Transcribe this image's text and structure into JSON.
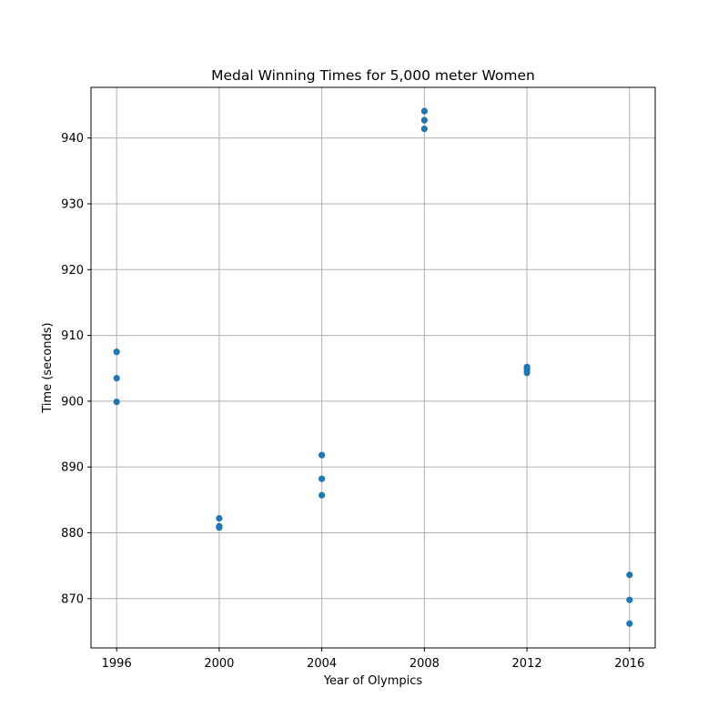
{
  "chart_data": {
    "type": "scatter",
    "title": "Medal Winning Times for 5,000 meter Women",
    "xlabel": "Year of Olympics",
    "ylabel": "Time (seconds)",
    "xlim": [
      1995,
      2017
    ],
    "ylim": [
      862.5,
      947.7
    ],
    "xticks": [
      1996,
      2000,
      2004,
      2008,
      2012,
      2016
    ],
    "yticks": [
      870,
      880,
      890,
      900,
      910,
      920,
      930,
      940
    ],
    "grid": true,
    "marker_color": "#1f77b4",
    "points": [
      {
        "x": 1996,
        "y": 907.5
      },
      {
        "x": 1996,
        "y": 903.5
      },
      {
        "x": 1996,
        "y": 899.9
      },
      {
        "x": 2000,
        "y": 882.2
      },
      {
        "x": 2000,
        "y": 881.0
      },
      {
        "x": 2000,
        "y": 880.8
      },
      {
        "x": 2004,
        "y": 891.8
      },
      {
        "x": 2004,
        "y": 888.2
      },
      {
        "x": 2004,
        "y": 885.7
      },
      {
        "x": 2008,
        "y": 944.1
      },
      {
        "x": 2008,
        "y": 942.7
      },
      {
        "x": 2008,
        "y": 941.4
      },
      {
        "x": 2012,
        "y": 905.2
      },
      {
        "x": 2012,
        "y": 904.8
      },
      {
        "x": 2012,
        "y": 904.3
      },
      {
        "x": 2016,
        "y": 873.6
      },
      {
        "x": 2016,
        "y": 869.8
      },
      {
        "x": 2016,
        "y": 866.2
      }
    ]
  }
}
